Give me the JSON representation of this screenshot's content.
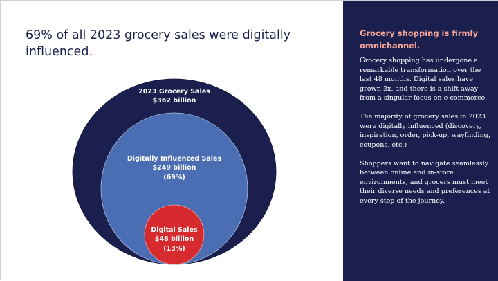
{
  "title": {
    "text": "69% of all 2023 grocery sales were digitally influenced",
    "accent": "."
  },
  "diagram": {
    "outer": {
      "label": "2023 Grocery Sales",
      "value": "$362 billion",
      "color": "#1b1f4e"
    },
    "middle": {
      "label": "Digitally Influenced Sales",
      "value": "$249 billion",
      "pct": "(69%)",
      "color": "#4a6db3"
    },
    "inner": {
      "label": "Digital Sales",
      "value": "$48 billion",
      "pct": "(13%)",
      "color": "#d62a2f"
    }
  },
  "panel": {
    "heading": "Grocery shopping is firmly omnichannel.",
    "paragraphs": [
      "Grocery shopping has undergone a remarkable transformation over the last 48 months. Digital sales have grown 3x, and there is a shift away from a singular focus on e-commerce.",
      "The majority of grocery sales in 2023 were digitally influenced (discovery, inspiration, order, pick-up, wayfinding, coupons, etc.)",
      "Shoppers want to navigate seamlessly between online and in-store environments, and grocers must meet their diverse needs and preferences at every step of the journey."
    ]
  }
}
